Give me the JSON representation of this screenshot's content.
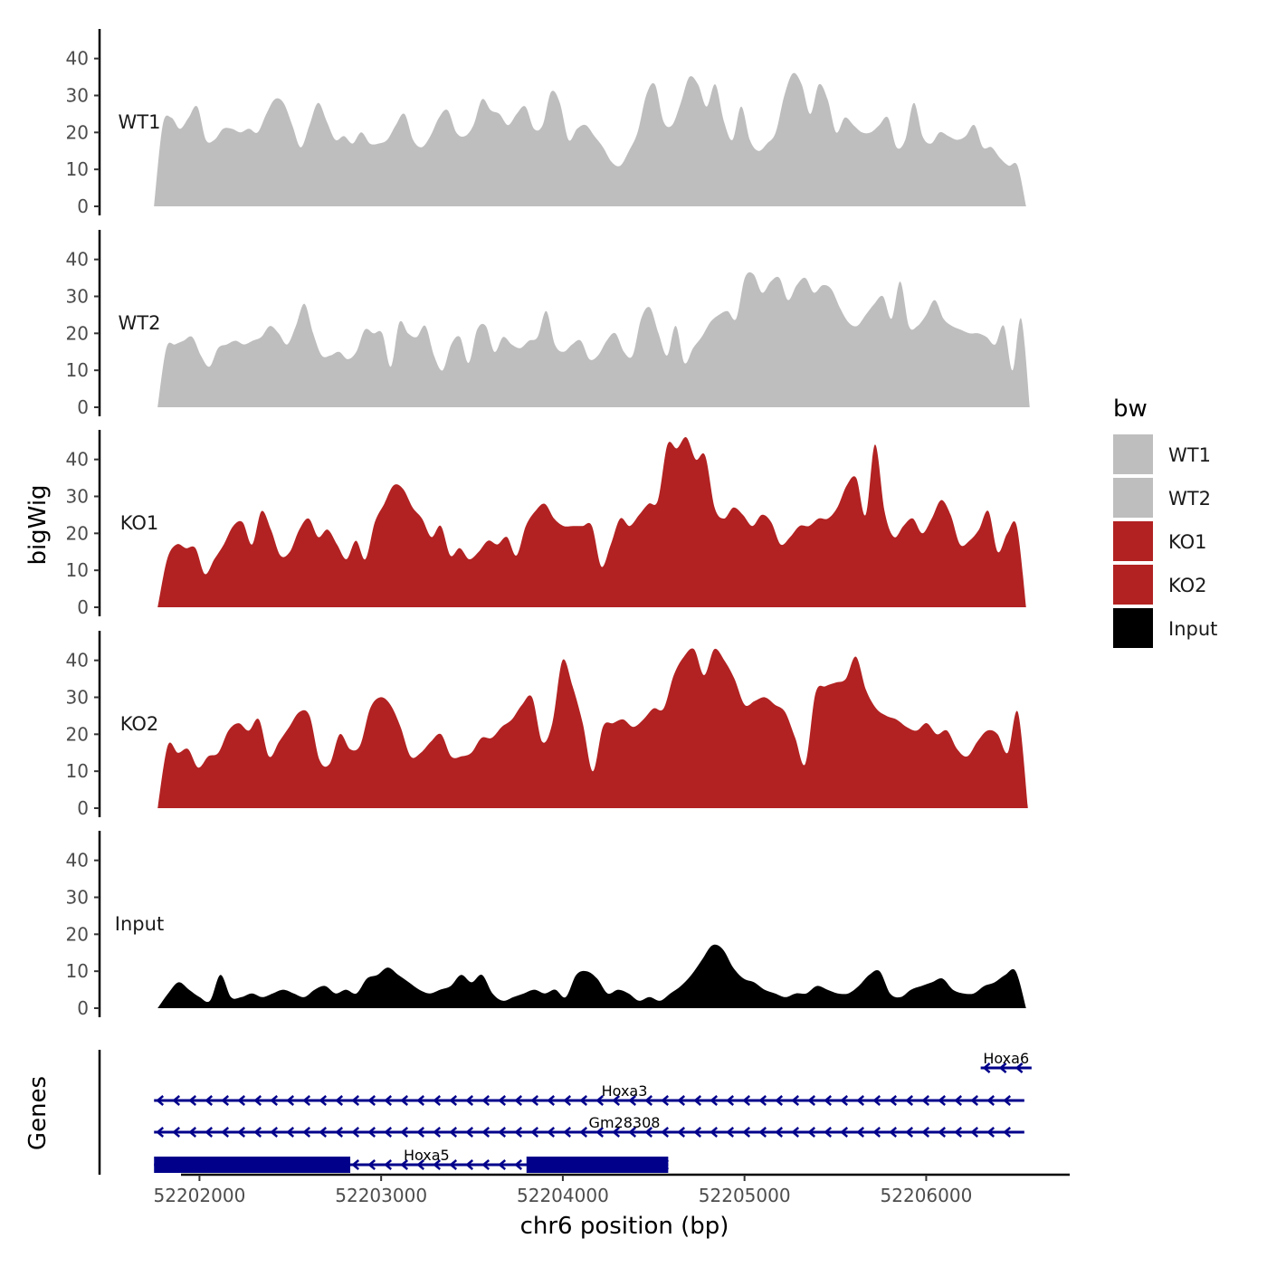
{
  "chart_data": {
    "type": "area",
    "title": "",
    "ylabel": "bigWig",
    "genes_label": "Genes",
    "xlabel": "chr6 position (bp)",
    "xlim": [
      52201450,
      52206780
    ],
    "ylim": [
      0,
      48
    ],
    "y_ticks": [
      "0",
      "10",
      "20",
      "30",
      "40"
    ],
    "x_ticks": [
      {
        "value": 52202000,
        "label": "52202000"
      },
      {
        "value": 52203000,
        "label": "52203000"
      },
      {
        "value": 52204000,
        "label": "52204000"
      },
      {
        "value": 52205000,
        "label": "52205000"
      },
      {
        "value": 52206000,
        "label": "52206000"
      }
    ],
    "legend": {
      "title": "bw",
      "position": "right",
      "entries": [
        {
          "label": "WT1",
          "color": "#bebebe"
        },
        {
          "label": "WT2",
          "color": "#bebebe"
        },
        {
          "label": "KO1",
          "color": "#b22222"
        },
        {
          "label": "KO2",
          "color": "#b22222"
        },
        {
          "label": "Input",
          "color": "#000000"
        }
      ]
    },
    "tracks": [
      {
        "name": "WT1",
        "color": "#bebebe",
        "x_start": 52201750,
        "x_end": 52206550,
        "values": [
          0,
          22,
          24,
          21,
          24,
          27,
          18,
          18,
          21,
          21,
          20,
          21,
          20,
          25,
          29,
          28,
          22,
          16,
          22,
          28,
          23,
          18,
          19,
          17,
          20,
          17,
          17,
          18,
          22,
          25,
          18,
          16,
          19,
          24,
          26,
          20,
          19,
          22,
          29,
          26,
          25,
          22,
          25,
          27,
          21,
          22,
          31,
          28,
          18,
          21,
          22,
          19,
          16,
          12,
          11,
          15,
          20,
          30,
          33,
          23,
          22,
          28,
          35,
          33,
          27,
          33,
          23,
          18,
          27,
          18,
          15,
          17,
          20,
          30,
          36,
          33,
          25,
          33,
          29,
          20,
          24,
          22,
          20,
          20,
          22,
          24,
          16,
          18,
          28,
          19,
          17,
          20,
          19,
          18,
          19,
          22,
          16,
          16,
          13,
          11,
          11,
          0
        ]
      },
      {
        "name": "WT2",
        "color": "#bebebe",
        "x_start": 52201770,
        "x_end": 52206570,
        "values": [
          0,
          16,
          17,
          18,
          19,
          14,
          11,
          16,
          17,
          18,
          17,
          18,
          19,
          22,
          20,
          17,
          22,
          28,
          20,
          14,
          14,
          15,
          13,
          15,
          21,
          20,
          20,
          11,
          23,
          20,
          19,
          22,
          14,
          10,
          17,
          19,
          12,
          21,
          22,
          15,
          19,
          17,
          16,
          18,
          19,
          26,
          17,
          15,
          17,
          18,
          13,
          14,
          18,
          20,
          15,
          14,
          24,
          27,
          20,
          14,
          22,
          12,
          16,
          19,
          23,
          25,
          26,
          24,
          35,
          36,
          31,
          34,
          35,
          29,
          33,
          35,
          31,
          33,
          32,
          27,
          23,
          22,
          25,
          28,
          30,
          24,
          34,
          22,
          22,
          25,
          29,
          24,
          22,
          21,
          20,
          20,
          19,
          17,
          22,
          10,
          24,
          0
        ]
      },
      {
        "name": "KO1",
        "color": "#b22222",
        "x_start": 52201770,
        "x_end": 52206550,
        "values": [
          0,
          13,
          17,
          16,
          16,
          9,
          13,
          17,
          22,
          23,
          17,
          26,
          21,
          14,
          15,
          21,
          24,
          19,
          21,
          17,
          13,
          18,
          13,
          23,
          28,
          33,
          32,
          27,
          24,
          19,
          22,
          14,
          16,
          13,
          15,
          18,
          17,
          19,
          14,
          22,
          26,
          28,
          24,
          22,
          22,
          22,
          22,
          11,
          17,
          24,
          22,
          25,
          28,
          29,
          44,
          43,
          46,
          40,
          41,
          27,
          24,
          27,
          25,
          22,
          25,
          23,
          17,
          19,
          22,
          22,
          24,
          24,
          27,
          33,
          35,
          25,
          44,
          26,
          19,
          22,
          24,
          20,
          24,
          29,
          25,
          17,
          18,
          21,
          26,
          15,
          20,
          22,
          0
        ]
      },
      {
        "name": "KO2",
        "color": "#b22222",
        "x_start": 52201770,
        "x_end": 52206560,
        "values": [
          0,
          17,
          15,
          16,
          11,
          14,
          15,
          21,
          23,
          21,
          24,
          14,
          18,
          22,
          26,
          25,
          13,
          12,
          20,
          16,
          17,
          27,
          30,
          28,
          22,
          14,
          15,
          18,
          20,
          14,
          14,
          15,
          19,
          19,
          22,
          24,
          28,
          30,
          18,
          23,
          40,
          33,
          23,
          10,
          22,
          23,
          24,
          22,
          24,
          27,
          27,
          36,
          41,
          43,
          36,
          43,
          40,
          35,
          28,
          29,
          30,
          28,
          26,
          19,
          12,
          31,
          33,
          34,
          35,
          41,
          32,
          27,
          25,
          24,
          22,
          21,
          23,
          20,
          21,
          16,
          14,
          18,
          21,
          20,
          15,
          26,
          0
        ]
      },
      {
        "name": "Input",
        "color": "#000000",
        "x_start": 52201770,
        "x_end": 52206550,
        "values": [
          0,
          4,
          7,
          5,
          3,
          2,
          9,
          3,
          3,
          4,
          3,
          4,
          5,
          4,
          3,
          5,
          6,
          4,
          5,
          4,
          8,
          9,
          11,
          9,
          7,
          5,
          4,
          5,
          6,
          9,
          7,
          9,
          4,
          2,
          3,
          4,
          5,
          4,
          5,
          3,
          9,
          10,
          8,
          4,
          5,
          4,
          2,
          3,
          2,
          4,
          6,
          9,
          13,
          17,
          16,
          11,
          8,
          7,
          5,
          4,
          3,
          4,
          4,
          6,
          5,
          4,
          4,
          6,
          9,
          10,
          4,
          3,
          5,
          6,
          7,
          8,
          5,
          4,
          4,
          6,
          7,
          9,
          10,
          0
        ]
      }
    ],
    "genes": [
      {
        "name": "Hoxa6",
        "start": 52206300,
        "end": 52206580,
        "strand": "-",
        "row": 0,
        "exons": []
      },
      {
        "name": "Hoxa3",
        "start": 52201750,
        "end": 52206540,
        "strand": "-",
        "row": 1,
        "exons": []
      },
      {
        "name": "Gm28308",
        "start": 52201750,
        "end": 52206540,
        "strand": "-",
        "row": 2,
        "exons": []
      },
      {
        "name": "Hoxa5",
        "start": 52201750,
        "end": 52204580,
        "strand": "-",
        "row": 3,
        "exons": [
          [
            52201750,
            52202830
          ],
          [
            52203800,
            52204580
          ]
        ]
      }
    ]
  }
}
